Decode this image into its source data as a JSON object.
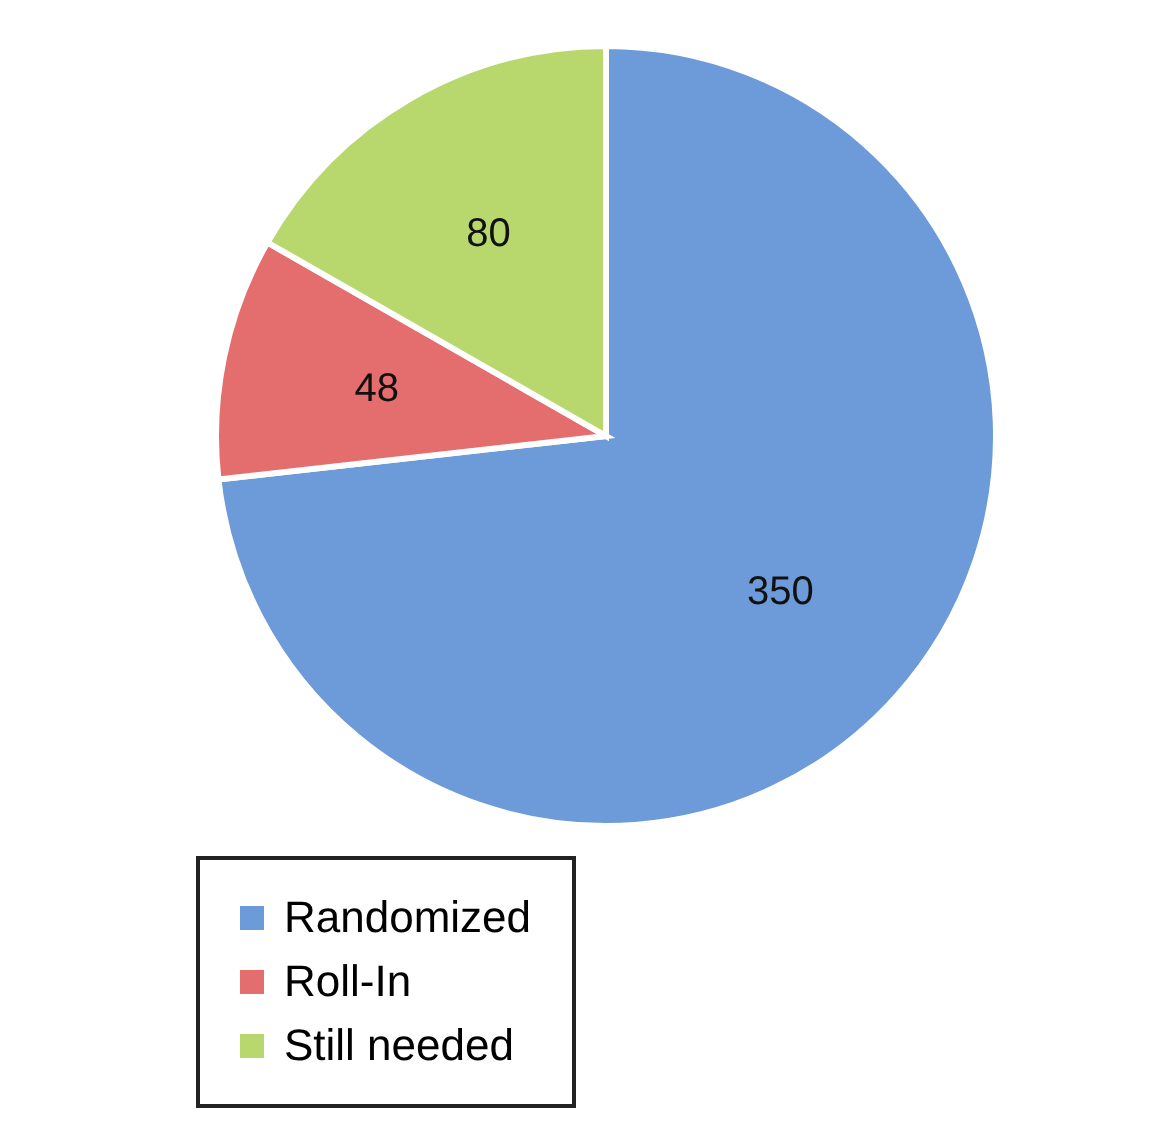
{
  "chart_data": {
    "type": "pie",
    "categories": [
      "Randomized",
      "Roll-In",
      "Still needed"
    ],
    "values": [
      350,
      48,
      80
    ],
    "colors": [
      "#6d9ad8",
      "#e46d6d",
      "#b8d86e"
    ],
    "data_labels": true,
    "legend": "bottom left"
  }
}
